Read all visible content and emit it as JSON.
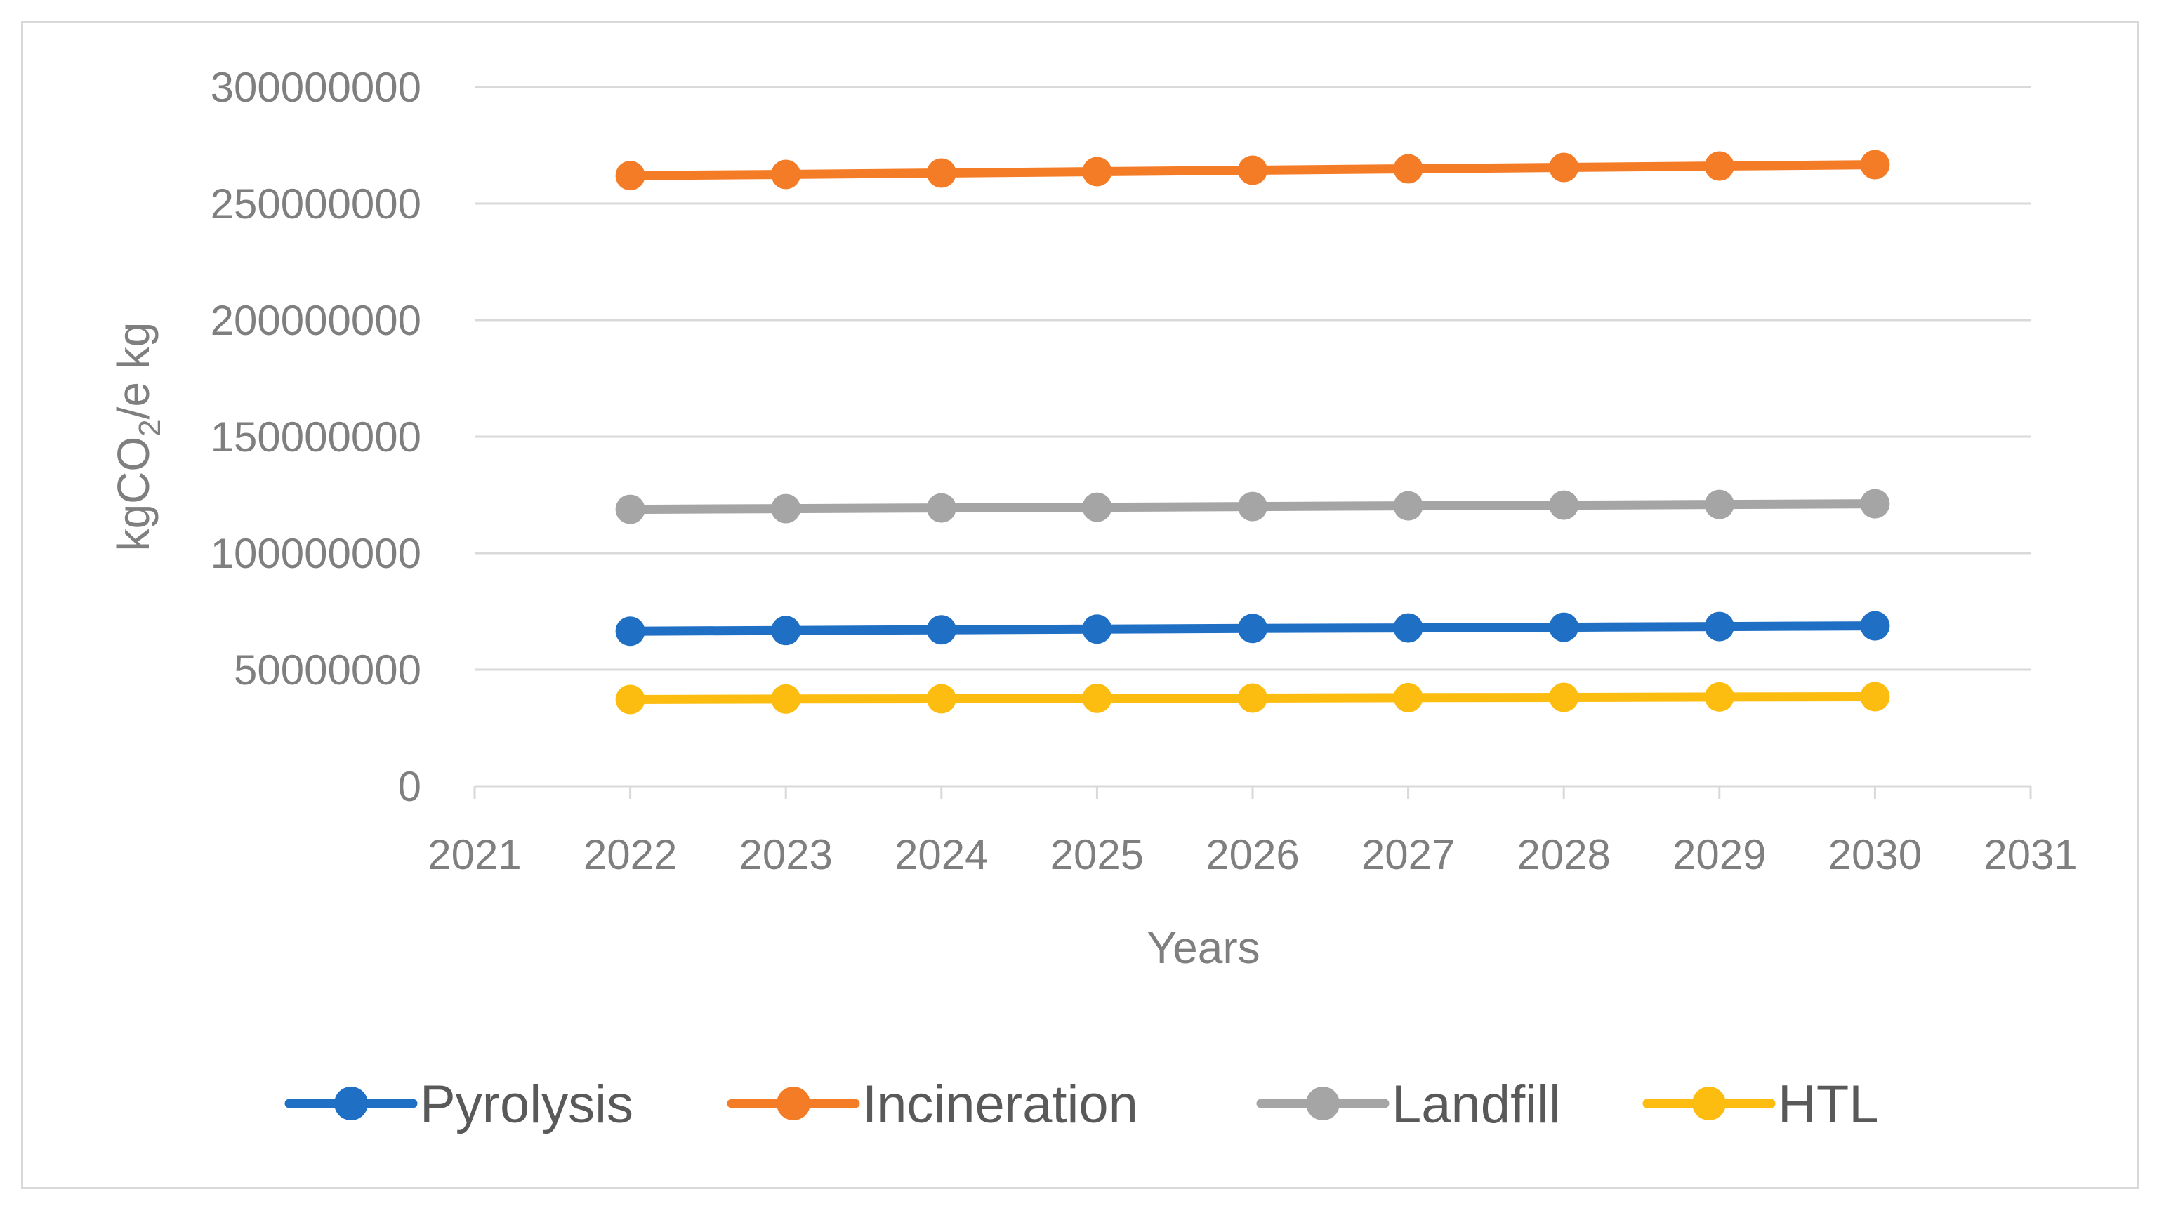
{
  "chart_data": {
    "type": "line",
    "title": "",
    "xlabel": "Years",
    "ylabel_parts": [
      "kgCO",
      "2",
      "/e kg"
    ],
    "x": [
      2022,
      2023,
      2024,
      2025,
      2026,
      2027,
      2028,
      2029,
      2030
    ],
    "xlim": [
      2021,
      2031
    ],
    "x_ticks": [
      "2021",
      "2022",
      "2023",
      "2024",
      "2025",
      "2026",
      "2027",
      "2028",
      "2029",
      "2030",
      "2031"
    ],
    "ylim": [
      0,
      300000000
    ],
    "y_ticks": [
      "0",
      "50000000",
      "100000000",
      "150000000",
      "200000000",
      "250000000",
      "300000000"
    ],
    "y_tick_values": [
      0,
      50000000,
      100000000,
      150000000,
      200000000,
      250000000,
      300000000
    ],
    "grid": true,
    "legend_position": "bottom",
    "series": [
      {
        "name": "Pyrolysis",
        "color": "#1f6fc5",
        "values": [
          66500000,
          66800000,
          67100000,
          67400000,
          67700000,
          67900000,
          68200000,
          68500000,
          68800000
        ]
      },
      {
        "name": "Incineration",
        "color": "#f57c26",
        "values": [
          262000000,
          262500000,
          263100000,
          263700000,
          264300000,
          264900000,
          265500000,
          266100000,
          266700000
        ]
      },
      {
        "name": "Landfill",
        "color": "#a5a5a5",
        "values": [
          118800000,
          119100000,
          119400000,
          119700000,
          120000000,
          120300000,
          120600000,
          120900000,
          121200000
        ]
      },
      {
        "name": "HTL",
        "color": "#fdbd10",
        "values": [
          37200000,
          37400000,
          37500000,
          37700000,
          37800000,
          38000000,
          38100000,
          38300000,
          38400000
        ]
      }
    ]
  }
}
